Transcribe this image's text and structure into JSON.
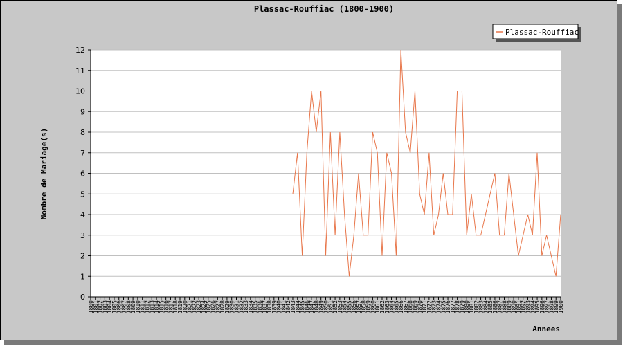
{
  "chart_data": {
    "type": "line",
    "title": "Plassac-Rouffiac (1800-1900)",
    "xlabel": "Annees",
    "ylabel": "Nombre de Mariage(s)",
    "xlim": [
      1800,
      1900
    ],
    "ylim": [
      0,
      12
    ],
    "yticks": [
      0,
      1,
      2,
      3,
      4,
      5,
      6,
      7,
      8,
      9,
      10,
      11,
      12
    ],
    "grid": true,
    "legend_position": "top-right",
    "series_color": "#e8764a",
    "series": [
      {
        "name": "Plassac-Rouffiac",
        "x": [
          1843,
          1844,
          1845,
          1846,
          1847,
          1848,
          1849,
          1850,
          1851,
          1852,
          1853,
          1854,
          1855,
          1856,
          1857,
          1858,
          1859,
          1860,
          1861,
          1862,
          1863,
          1864,
          1865,
          1866,
          1867,
          1868,
          1869,
          1870,
          1871,
          1872,
          1873,
          1874,
          1875,
          1876,
          1877,
          1878,
          1879,
          1880,
          1881,
          1882,
          1883,
          1884,
          1885,
          1886,
          1887,
          1888,
          1889,
          1890,
          1891,
          1892,
          1893,
          1894,
          1895,
          1896,
          1897,
          1898,
          1899,
          1900
        ],
        "values": [
          5,
          7,
          2,
          7,
          10,
          8,
          10,
          2,
          8,
          3,
          8,
          4,
          1,
          3,
          6,
          3,
          3,
          8,
          7,
          2,
          7,
          6,
          2,
          12,
          8,
          7,
          10,
          5,
          4,
          7,
          3,
          4,
          6,
          4,
          4,
          10,
          10,
          3,
          5,
          3,
          3,
          4,
          5,
          6,
          3,
          3,
          6,
          4,
          2,
          3,
          4,
          3,
          7,
          2,
          3,
          2,
          1,
          4
        ]
      }
    ]
  }
}
